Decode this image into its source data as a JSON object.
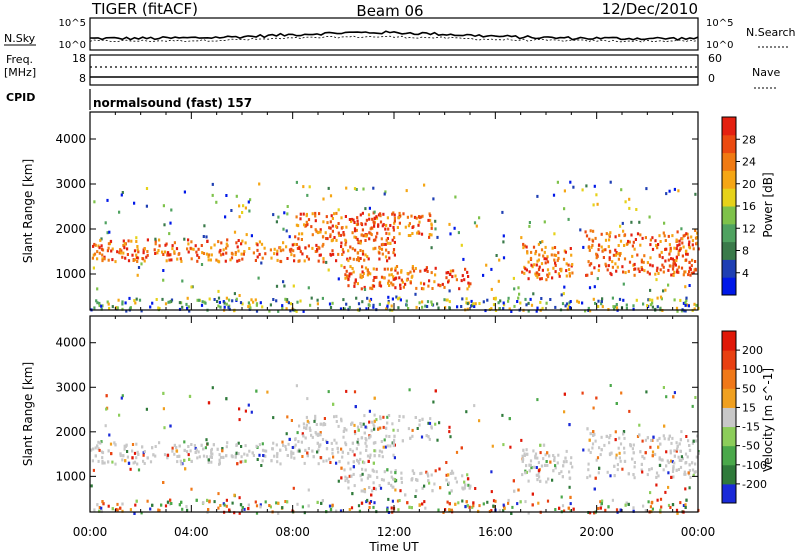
{
  "header": {
    "left": "TIGER (fitACF)",
    "center": "Beam 06",
    "right": "12/Dec/2010"
  },
  "aux": {
    "nsky_label": "N.Sky",
    "nsky_ticks": [
      "10^5",
      "10^0"
    ],
    "nsearch_label": "N.Search",
    "freq_label": "Freq.",
    "freq_unit": "[MHz]",
    "freq_ticks": [
      "18",
      "8"
    ],
    "nave_ticks": [
      "60",
      "0"
    ],
    "nave_label": "Nave",
    "cpid_label": "CPID",
    "cpid_text": "normalsound (fast) 157"
  },
  "colorbars": {
    "power": {
      "label": "Power [dB]",
      "ticks": [
        "28",
        "24",
        "20",
        "16",
        "12",
        "8",
        "4"
      ],
      "colors": [
        "#0018e8",
        "#1f3fb3",
        "#3a7a4a",
        "#4fa260",
        "#7ec24a",
        "#e6d21a",
        "#f5a614",
        "#f07a12",
        "#eb4a10",
        "#e42010"
      ]
    },
    "velocity": {
      "label": "Velocity [m s^-1]",
      "ticks": [
        "200",
        "100",
        "50",
        "15",
        "-15",
        "-50",
        "-100",
        "-200"
      ],
      "colors": [
        "#1a2ad8",
        "#2f7a3a",
        "#4aa84a",
        "#8ccd5a",
        "#c8c8c8",
        "#f0a020",
        "#f07818",
        "#e84012",
        "#e01808"
      ]
    }
  },
  "chart_data": [
    {
      "type": "heatmap",
      "panel": "power",
      "ylabel": "Slant Range [km]",
      "yticks": [
        1000,
        2000,
        3000,
        4000
      ],
      "ylim": [
        200,
        4600
      ],
      "xlim": [
        0,
        24
      ],
      "xticks": [
        "00:00",
        "04:00",
        "08:00",
        "12:00",
        "16:00",
        "20:00",
        "00:00"
      ],
      "bands": [
        {
          "t0": 0,
          "t1": 12,
          "r0": 1300,
          "r1": 1800,
          "level": "high"
        },
        {
          "t0": 8,
          "t1": 13.5,
          "r0": 1800,
          "r1": 2400,
          "level": "high"
        },
        {
          "t0": 10,
          "t1": 15,
          "r0": 700,
          "r1": 1200,
          "level": "high"
        },
        {
          "t0": 17,
          "t1": 19,
          "r0": 900,
          "r1": 1700,
          "level": "high"
        },
        {
          "t0": 19.5,
          "t1": 24,
          "r0": 1000,
          "r1": 2000,
          "level": "high"
        }
      ]
    },
    {
      "type": "heatmap",
      "panel": "velocity",
      "ylabel": "Slant Range [km]",
      "yticks": [
        1000,
        2000,
        3000,
        4000
      ],
      "ylim": [
        200,
        4600
      ],
      "xlim": [
        0,
        24
      ],
      "xticks": [
        "00:00",
        "04:00",
        "08:00",
        "12:00",
        "16:00",
        "20:00",
        "00:00"
      ],
      "xlabel": "Time UT"
    }
  ]
}
